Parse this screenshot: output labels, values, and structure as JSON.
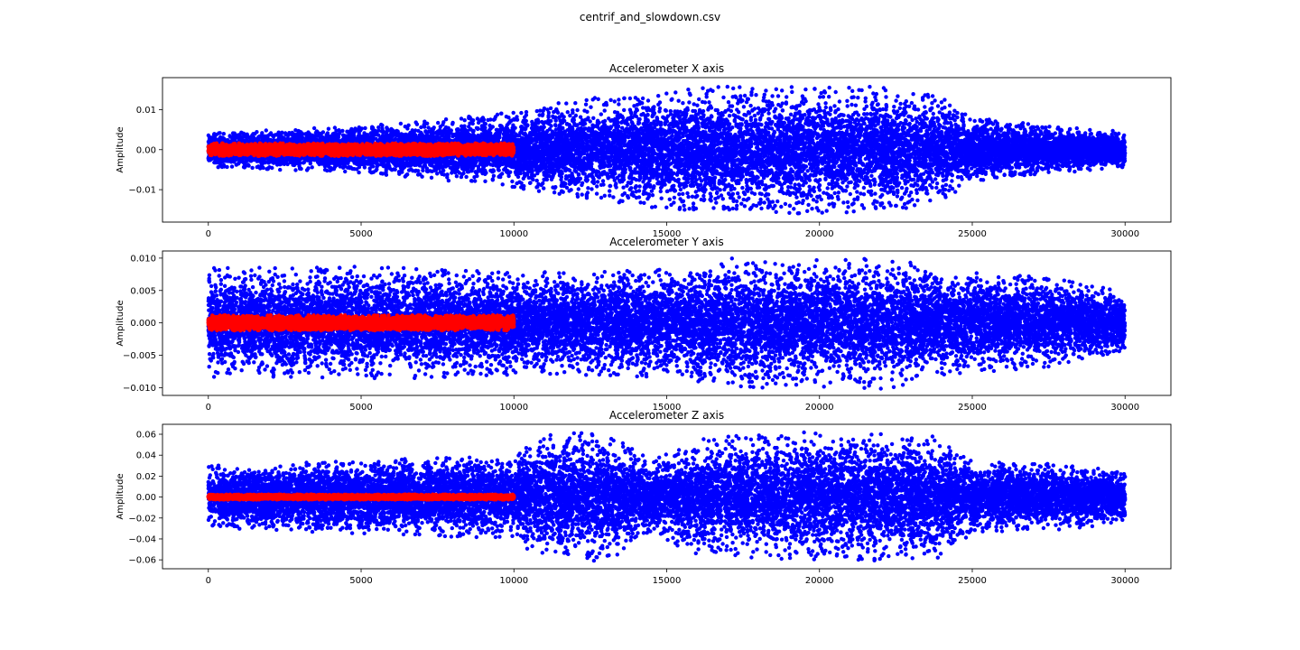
{
  "figure": {
    "title": "centrif_and_slowdown.csv"
  },
  "chart_data": [
    {
      "type": "scatter",
      "title": "Accelerometer X axis",
      "xlabel": "",
      "ylabel": "Amplitude",
      "xlim": [
        -1500,
        31500
      ],
      "ylim": [
        -0.0181,
        0.018
      ],
      "xticks": [
        0,
        5000,
        10000,
        15000,
        20000,
        25000,
        30000
      ],
      "yticks": [
        -0.01,
        0.0,
        0.01
      ],
      "ytick_labels": [
        "−0.01",
        "0.00",
        "0.01"
      ],
      "grid": false,
      "colors": {
        "blue": "#0000ff",
        "red": "#ff0000"
      },
      "series": [
        {
          "color": "blue",
          "x_range": [
            0,
            30000
          ],
          "n_points": 15000,
          "envelope_x": [
            0,
            5000,
            10000,
            12000,
            15000,
            17000,
            20000,
            22500,
            24000,
            25000,
            27500,
            30000
          ],
          "envelope_amp": [
            0.0045,
            0.0058,
            0.0095,
            0.0125,
            0.0148,
            0.016,
            0.016,
            0.016,
            0.013,
            0.008,
            0.006,
            0.0045
          ]
        },
        {
          "color": "red",
          "x_range": [
            0,
            10000
          ],
          "n_points": 6000,
          "envelope_x": [
            0,
            10000
          ],
          "envelope_amp": [
            0.0016,
            0.0016
          ]
        }
      ]
    },
    {
      "type": "scatter",
      "title": "Accelerometer Y axis",
      "xlabel": "",
      "ylabel": "Amplitude",
      "xlim": [
        -1500,
        31500
      ],
      "ylim": [
        -0.0112,
        0.0111
      ],
      "xticks": [
        0,
        5000,
        10000,
        15000,
        20000,
        25000,
        30000
      ],
      "yticks": [
        -0.01,
        -0.005,
        0.0,
        0.005,
        0.01
      ],
      "ytick_labels": [
        "−0.010",
        "−0.005",
        "0.000",
        "0.005",
        "0.010"
      ],
      "grid": false,
      "colors": {
        "blue": "#0000ff",
        "red": "#ff0000"
      },
      "series": [
        {
          "color": "blue",
          "x_range": [
            0,
            30000
          ],
          "n_points": 15000,
          "envelope_x": [
            0,
            5000,
            10000,
            15000,
            17000,
            20000,
            22500,
            24000,
            27500,
            30000
          ],
          "envelope_amp": [
            0.0085,
            0.0088,
            0.008,
            0.0085,
            0.0102,
            0.0102,
            0.0102,
            0.008,
            0.007,
            0.0048
          ]
        },
        {
          "color": "red",
          "x_range": [
            0,
            10000
          ],
          "n_points": 6000,
          "envelope_x": [
            0,
            10000
          ],
          "envelope_amp": [
            0.0012,
            0.0012
          ]
        }
      ]
    },
    {
      "type": "scatter",
      "title": "Accelerometer Z axis",
      "xlabel": "",
      "ylabel": "Amplitude",
      "xlim": [
        -1500,
        31500
      ],
      "ylim": [
        -0.0685,
        0.0695
      ],
      "xticks": [
        0,
        5000,
        10000,
        15000,
        20000,
        25000,
        30000
      ],
      "yticks": [
        -0.06,
        -0.04,
        -0.02,
        0.0,
        0.02,
        0.04,
        0.06
      ],
      "ytick_labels": [
        "−0.06",
        "−0.04",
        "−0.02",
        "0.00",
        "0.02",
        "0.04",
        "0.06"
      ],
      "grid": false,
      "colors": {
        "blue": "#0000ff",
        "red": "#ff0000"
      },
      "series": [
        {
          "color": "blue",
          "x_range": [
            0,
            30000
          ],
          "n_points": 15000,
          "envelope_x": [
            0,
            5000,
            10000,
            11000,
            13000,
            14500,
            16000,
            18000,
            20000,
            22500,
            24000,
            25000,
            27500,
            30000
          ],
          "envelope_amp": [
            0.03,
            0.035,
            0.04,
            0.062,
            0.062,
            0.035,
            0.055,
            0.062,
            0.062,
            0.06,
            0.058,
            0.035,
            0.032,
            0.025
          ]
        },
        {
          "color": "red",
          "x_range": [
            0,
            10000
          ],
          "n_points": 6000,
          "envelope_x": [
            0,
            10000
          ],
          "envelope_amp": [
            0.0025,
            0.0025
          ]
        }
      ]
    }
  ]
}
